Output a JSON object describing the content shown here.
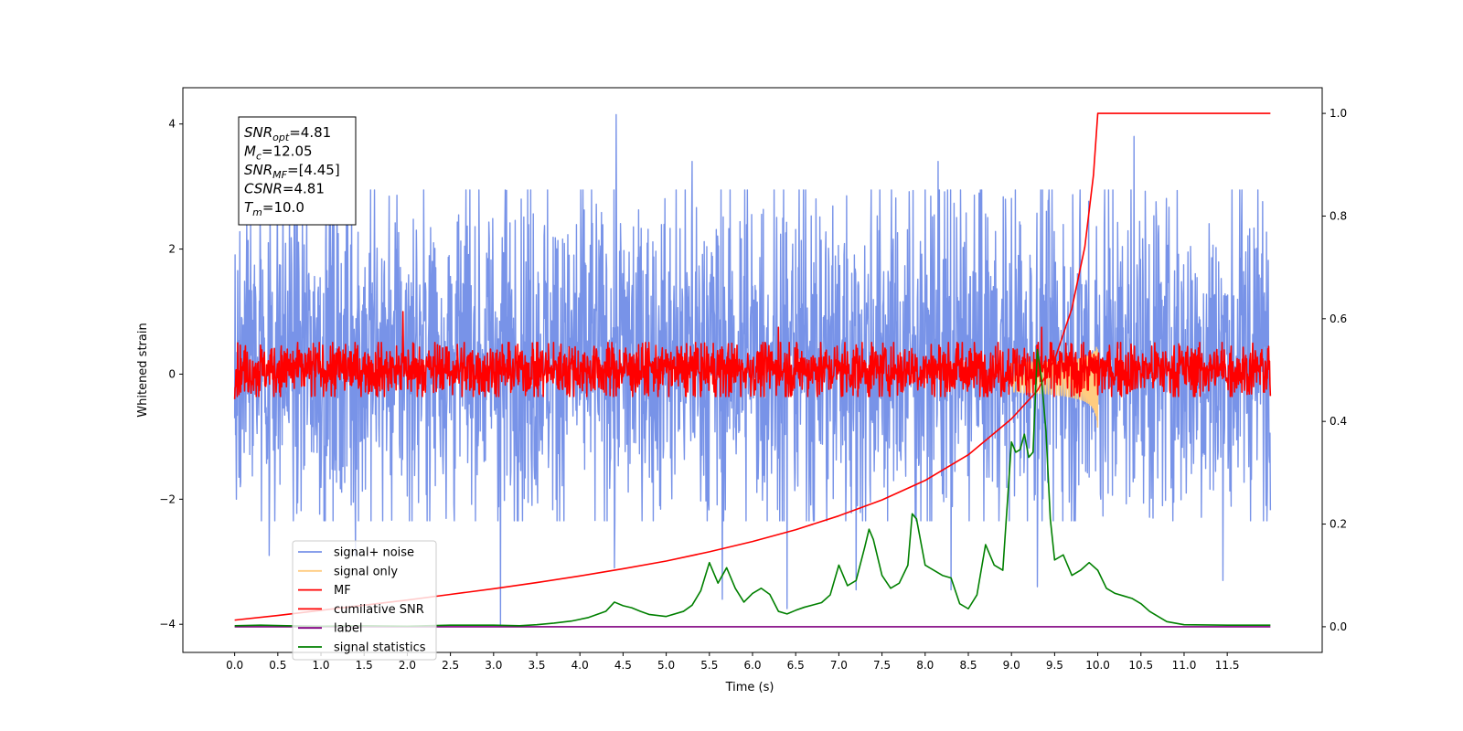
{
  "chart_data": {
    "type": "line",
    "xlabel": "Time (s)",
    "ylabel_left": "Whitened strain",
    "xlim": [
      -0.6,
      12.6
    ],
    "ylim_left": [
      -4.45,
      4.58
    ],
    "ylim_right": [
      -0.05,
      1.05
    ],
    "x_ticks": [
      0.0,
      0.5,
      1.0,
      1.5,
      2.0,
      2.5,
      3.0,
      3.5,
      4.0,
      4.5,
      5.0,
      5.5,
      6.0,
      6.5,
      7.0,
      7.5,
      8.0,
      8.5,
      9.0,
      9.5,
      10.0,
      10.5,
      11.0,
      11.5
    ],
    "x_tick_labels": [
      "0.0",
      "0.5",
      "1.0",
      "1.5",
      "2.0",
      "2.5",
      "3.0",
      "3.5",
      "4.0",
      "4.5",
      "5.0",
      "5.5",
      "6.0",
      "6.5",
      "7.0",
      "7.5",
      "8.0",
      "8.5",
      "9.0",
      "9.5",
      "10.0",
      "10.5",
      "11.0",
      "11.5"
    ],
    "y_ticks_left": [
      -4,
      -2,
      0,
      2,
      4
    ],
    "y_tick_labels_left": [
      "−4",
      "−2",
      "0",
      "2",
      "4"
    ],
    "y_ticks_right": [
      0.0,
      0.2,
      0.4,
      0.6,
      0.8,
      1.0
    ],
    "y_tick_labels_right": [
      "0.0",
      "0.2",
      "0.4",
      "0.6",
      "0.8",
      "1.0"
    ],
    "grid": false,
    "legend_position": "lower-left",
    "annotation": {
      "lines": [
        {
          "base": "SNR",
          "sub": "opt",
          "value": "=4.81"
        },
        {
          "base": "M",
          "sub": "c",
          "value": "=12.05"
        },
        {
          "base": "SNR",
          "sub": "MF",
          "value": "=[4.45]"
        },
        {
          "base": "CSNR",
          "sub": "",
          "value": "=4.81"
        },
        {
          "base": "T",
          "sub": "m",
          "value": "=10.0"
        }
      ]
    },
    "series": [
      {
        "name": "signal+ noise",
        "color": "#7893e8",
        "axis": "left",
        "kind": "noise",
        "x_range": [
          0.0,
          12.0
        ],
        "typical_low": -2.0,
        "typical_high": 2.6,
        "peaks": [
          [
            0.02,
            2.7
          ],
          [
            0.4,
            3.3
          ],
          [
            1.1,
            3.3
          ],
          [
            4.42,
            4.15
          ],
          [
            5.3,
            3.4
          ],
          [
            8.15,
            3.4
          ],
          [
            10.42,
            3.8
          ],
          [
            11.95,
            3.3
          ]
        ],
        "troughs": [
          [
            0.02,
            -2.0
          ],
          [
            0.4,
            -2.9
          ],
          [
            1.4,
            -2.9
          ],
          [
            3.08,
            -4.0
          ],
          [
            4.4,
            -3.1
          ],
          [
            5.65,
            -3.6
          ],
          [
            6.4,
            -3.75
          ],
          [
            7.2,
            -3.45
          ],
          [
            8.3,
            -3.45
          ],
          [
            9.3,
            -3.4
          ],
          [
            11.45,
            -3.3
          ],
          [
            11.95,
            -2.1
          ]
        ]
      },
      {
        "name": "signal only",
        "color": "#ffcc80",
        "axis": "left",
        "kind": "chirp",
        "x_range": [
          9.0,
          10.0
        ],
        "peak_value": 0.55,
        "trough_value": -0.9
      },
      {
        "name": "MF",
        "color": "#ff0000",
        "axis": "left",
        "kind": "noise",
        "x_range": [
          0.0,
          12.0
        ],
        "typical_low": -0.3,
        "typical_high": 0.45,
        "peaks": [
          [
            0.0,
            0.9
          ],
          [
            1.95,
            1.0
          ],
          [
            6.3,
            0.75
          ],
          [
            9.35,
            0.75
          ],
          [
            12.0,
            1.0
          ]
        ],
        "troughs": [
          [
            0.0,
            -0.4
          ],
          [
            12.0,
            -0.35
          ]
        ]
      },
      {
        "name": "cumilative SNR",
        "color": "#ff0000",
        "axis": "right",
        "x": [
          0.0,
          0.5,
          1.0,
          1.5,
          2.0,
          2.5,
          3.0,
          3.5,
          4.0,
          4.5,
          5.0,
          5.5,
          6.0,
          6.5,
          7.0,
          7.5,
          8.0,
          8.5,
          9.0,
          9.3,
          9.5,
          9.7,
          9.85,
          9.95,
          10.0,
          11.0,
          12.0
        ],
        "y": [
          0.013,
          0.022,
          0.032,
          0.042,
          0.052,
          0.063,
          0.074,
          0.086,
          0.099,
          0.113,
          0.128,
          0.146,
          0.166,
          0.189,
          0.216,
          0.247,
          0.285,
          0.335,
          0.405,
          0.46,
          0.52,
          0.62,
          0.74,
          0.88,
          1.0,
          1.0,
          1.0
        ]
      },
      {
        "name": "label",
        "color": "#800080",
        "axis": "right",
        "x": [
          0.0,
          12.0
        ],
        "y": [
          0.0,
          0.0
        ]
      },
      {
        "name": "signal statistics",
        "color": "#008000",
        "axis": "right",
        "x": [
          0.0,
          0.3,
          0.6,
          1.0,
          1.5,
          2.0,
          2.5,
          3.0,
          3.3,
          3.5,
          3.7,
          3.9,
          4.1,
          4.3,
          4.4,
          4.5,
          4.6,
          4.7,
          4.8,
          5.0,
          5.2,
          5.3,
          5.4,
          5.5,
          5.6,
          5.7,
          5.8,
          5.9,
          6.0,
          6.1,
          6.2,
          6.3,
          6.4,
          6.5,
          6.6,
          6.8,
          6.9,
          7.0,
          7.1,
          7.2,
          7.3,
          7.35,
          7.4,
          7.5,
          7.6,
          7.7,
          7.8,
          7.85,
          7.9,
          8.0,
          8.1,
          8.2,
          8.3,
          8.4,
          8.5,
          8.6,
          8.7,
          8.8,
          8.9,
          9.0,
          9.05,
          9.1,
          9.15,
          9.2,
          9.25,
          9.3,
          9.35,
          9.4,
          9.45,
          9.5,
          9.6,
          9.7,
          9.8,
          9.9,
          10.0,
          10.1,
          10.2,
          10.3,
          10.4,
          10.5,
          10.6,
          10.7,
          10.8,
          11.0,
          11.5,
          12.0
        ],
        "y": [
          0.002,
          0.003,
          0.002,
          0.001,
          0.002,
          0.001,
          0.003,
          0.003,
          0.002,
          0.004,
          0.007,
          0.011,
          0.018,
          0.03,
          0.048,
          0.041,
          0.037,
          0.03,
          0.024,
          0.02,
          0.03,
          0.042,
          0.07,
          0.125,
          0.085,
          0.115,
          0.075,
          0.048,
          0.065,
          0.075,
          0.063,
          0.03,
          0.025,
          0.032,
          0.038,
          0.047,
          0.062,
          0.12,
          0.08,
          0.09,
          0.155,
          0.19,
          0.17,
          0.1,
          0.075,
          0.085,
          0.12,
          0.22,
          0.21,
          0.12,
          0.11,
          0.1,
          0.095,
          0.045,
          0.035,
          0.062,
          0.16,
          0.12,
          0.11,
          0.36,
          0.34,
          0.345,
          0.375,
          0.33,
          0.34,
          0.54,
          0.48,
          0.38,
          0.21,
          0.13,
          0.14,
          0.1,
          0.11,
          0.125,
          0.11,
          0.075,
          0.065,
          0.06,
          0.055,
          0.045,
          0.03,
          0.02,
          0.01,
          0.004,
          0.003,
          0.003
        ]
      }
    ]
  }
}
